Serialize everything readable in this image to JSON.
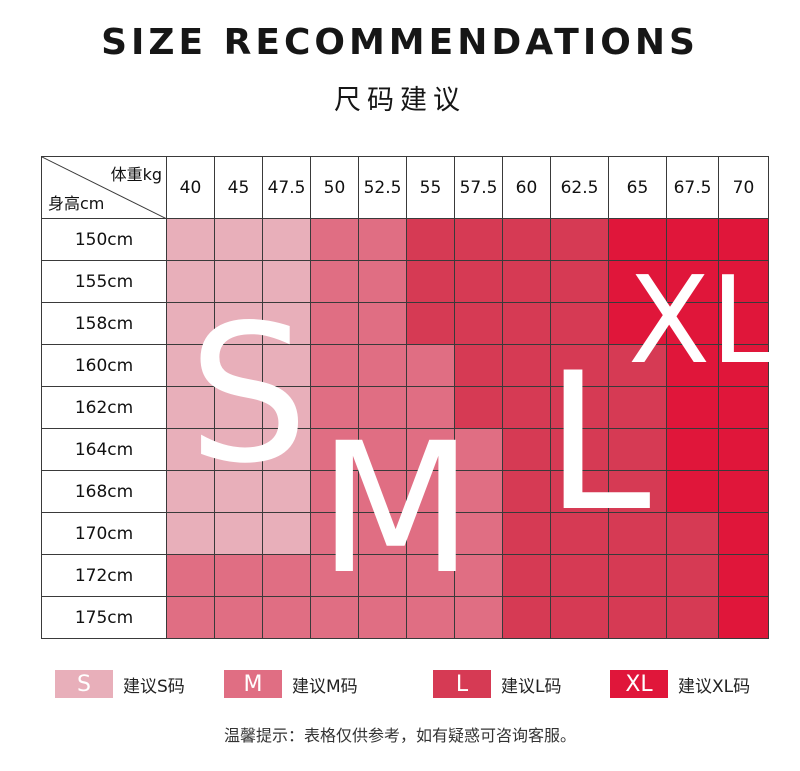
{
  "header": {
    "title_en": "SIZE RECOMMENDATIONS",
    "title_cn": "尺码建议"
  },
  "colors": {
    "S": "#E8AFBA",
    "M": "#E06E83",
    "L": "#D63A54",
    "XL": "#E0163A"
  },
  "table": {
    "corner_weight_label": "体重kg",
    "corner_height_label": "身高cm",
    "weights": [
      "40",
      "45",
      "47.5",
      "50",
      "52.5",
      "55",
      "57.5",
      "60",
      "62.5",
      "65",
      "67.5",
      "70"
    ],
    "heights": [
      "150cm",
      "155cm",
      "158cm",
      "160cm",
      "162cm",
      "164cm",
      "168cm",
      "170cm",
      "172cm",
      "175cm"
    ],
    "grid": [
      [
        "S",
        "S",
        "S",
        "M",
        "M",
        "L",
        "L",
        "L",
        "L",
        "XL",
        "XL",
        "XL"
      ],
      [
        "S",
        "S",
        "S",
        "M",
        "M",
        "L",
        "L",
        "L",
        "L",
        "XL",
        "XL",
        "XL"
      ],
      [
        "S",
        "S",
        "S",
        "M",
        "M",
        "L",
        "L",
        "L",
        "L",
        "XL",
        "XL",
        "XL"
      ],
      [
        "S",
        "S",
        "S",
        "M",
        "M",
        "M",
        "L",
        "L",
        "L",
        "L",
        "XL",
        "XL"
      ],
      [
        "S",
        "S",
        "S",
        "M",
        "M",
        "M",
        "L",
        "L",
        "L",
        "L",
        "XL",
        "XL"
      ],
      [
        "S",
        "S",
        "S",
        "M",
        "M",
        "M",
        "M",
        "L",
        "L",
        "L",
        "XL",
        "XL"
      ],
      [
        "S",
        "S",
        "S",
        "M",
        "M",
        "M",
        "M",
        "L",
        "L",
        "L",
        "XL",
        "XL"
      ],
      [
        "S",
        "S",
        "S",
        "M",
        "M",
        "M",
        "M",
        "L",
        "L",
        "L",
        "L",
        "XL"
      ],
      [
        "M",
        "M",
        "M",
        "M",
        "M",
        "M",
        "M",
        "L",
        "L",
        "L",
        "L",
        "XL"
      ],
      [
        "M",
        "M",
        "M",
        "M",
        "M",
        "M",
        "M",
        "L",
        "L",
        "L",
        "L",
        "XL"
      ]
    ],
    "big_letters": [
      "S",
      "M",
      "L",
      "XL"
    ]
  },
  "legend": [
    {
      "size": "S",
      "label": "建议S码"
    },
    {
      "size": "M",
      "label": "建议M码"
    },
    {
      "size": "L",
      "label": "建议L码"
    },
    {
      "size": "XL",
      "label": "建议XL码"
    }
  ],
  "note": "温馨提示：表格仅供参考，如有疑惑可咨询客服。"
}
